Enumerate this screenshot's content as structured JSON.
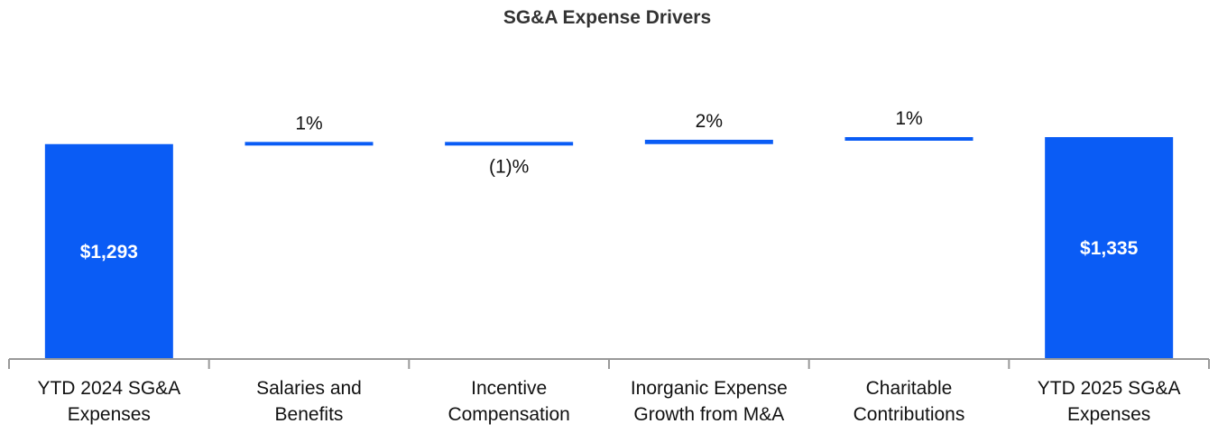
{
  "chart_data": {
    "type": "waterfall",
    "title": "SG&A Expense Drivers",
    "categories": [
      [
        "YTD 2024 SG&A",
        "Expenses"
      ],
      [
        "Salaries and",
        "Benefits"
      ],
      [
        "Incentive",
        "Compensation"
      ],
      [
        "Inorganic Expense",
        "Growth from M&A"
      ],
      [
        "Charitable",
        "Contributions"
      ],
      [
        "YTD 2025 SG&A",
        "Expenses"
      ]
    ],
    "bars": [
      {
        "kind": "total",
        "value": 1293,
        "label": "$1,293"
      },
      {
        "kind": "delta",
        "value": 13,
        "label": "1%"
      },
      {
        "kind": "delta",
        "value": -13,
        "label": "(1)%"
      },
      {
        "kind": "delta",
        "value": 26,
        "label": "2%"
      },
      {
        "kind": "delta",
        "value": 16,
        "label": "1%"
      },
      {
        "kind": "total",
        "value": 1335,
        "label": "$1,335"
      }
    ],
    "ylim": [
      0,
      1335
    ],
    "xlabel": "",
    "ylabel": "",
    "grid": false,
    "legend": "none"
  },
  "colors": {
    "bar": "#0a5cf5",
    "axis": "#999999",
    "text": "#111111",
    "title": "#333333",
    "total_label": "#ffffff"
  }
}
